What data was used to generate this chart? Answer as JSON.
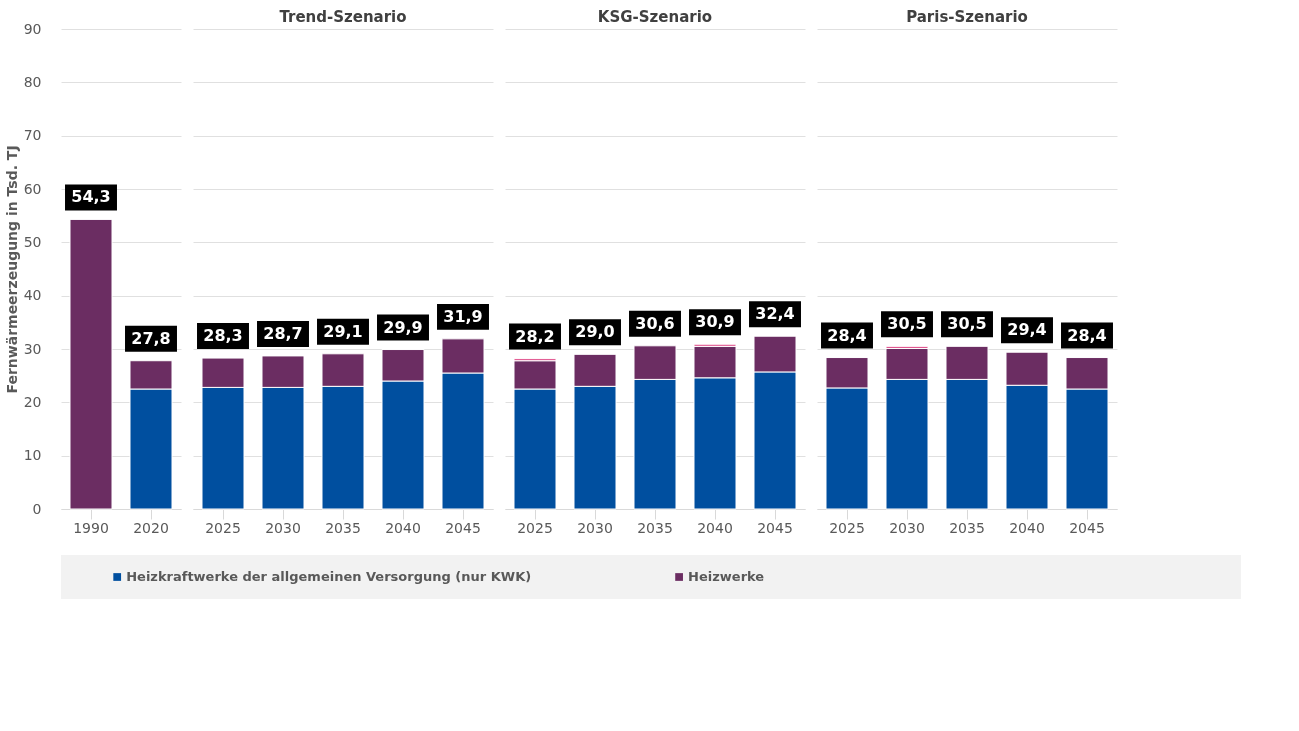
{
  "chart_data": [
    {
      "type": "bar",
      "stacked": true,
      "ylabel": "Fernwärmeerzeugung in Tsd. TJ",
      "categories": [
        "1990",
        "2020"
      ],
      "series": [
        {
          "name": "Heizkraftwerke der allgemeinen Versorgung (nur KWK)",
          "color": "#004f9f",
          "values": [
            null,
            22.5
          ]
        },
        {
          "name": "Heizwerke",
          "color": "#6b2d62",
          "values": [
            54.3,
            5.3
          ]
        }
      ],
      "totals": [
        "54,3",
        "27,8"
      ],
      "ylim": [
        0,
        90
      ],
      "yticks": [
        0,
        10,
        20,
        30,
        40,
        50,
        60,
        70,
        80,
        90
      ],
      "grid": "y",
      "legend": "bottom"
    },
    {
      "type": "bar",
      "stacked": true,
      "title": "Trend-Szenario",
      "categories": [
        "2025",
        "2030",
        "2035",
        "2040",
        "2045"
      ],
      "series": [
        {
          "color": "#004f9f",
          "values": [
            22.8,
            22.8,
            23.0,
            24.0,
            25.5
          ]
        },
        {
          "color": "#6b2d62",
          "values": [
            5.5,
            5.9,
            6.1,
            5.9,
            6.4
          ]
        }
      ],
      "totals": [
        "28,3",
        "28,7",
        "29,1",
        "29,9",
        "31,9"
      ],
      "ylim": [
        0,
        90
      ],
      "yticks": [
        0,
        10,
        20,
        30,
        40,
        50,
        60,
        70,
        80,
        90
      ],
      "grid": "y",
      "tick_labels": "x"
    },
    {
      "type": "bar",
      "stacked": true,
      "title": "KSG-Szenario",
      "categories": [
        "2025",
        "2030",
        "2035",
        "2040",
        "2045"
      ],
      "series": [
        {
          "color": "#004f9f",
          "values": [
            22.5,
            23.0,
            24.3,
            24.6,
            25.7
          ]
        },
        {
          "color": "#6b2d62",
          "values": [
            5.3,
            6.0,
            6.3,
            5.9,
            6.7
          ]
        },
        {
          "color": "#e0508c",
          "values": [
            0.4,
            null,
            null,
            0.4,
            null
          ]
        }
      ],
      "totals": [
        "28,2",
        "29,0",
        "30,6",
        "30,9",
        "32,4"
      ],
      "ylim": [
        0,
        90
      ],
      "yticks": [
        0,
        10,
        20,
        30,
        40,
        50,
        60,
        70,
        80,
        90
      ],
      "grid": "y",
      "tick_labels": "x"
    },
    {
      "type": "bar",
      "stacked": true,
      "title": "Paris-Szenario",
      "categories": [
        "2025",
        "2030",
        "2035",
        "2040",
        "2045"
      ],
      "series": [
        {
          "color": "#004f9f",
          "values": [
            22.7,
            24.3,
            24.3,
            23.2,
            22.5
          ]
        },
        {
          "color": "#6b2d62",
          "values": [
            5.7,
            5.8,
            6.2,
            6.2,
            5.9
          ]
        },
        {
          "color": "#e0508c",
          "values": [
            null,
            0.4,
            null,
            null,
            null
          ]
        }
      ],
      "totals": [
        "28,4",
        "30,5",
        "30,5",
        "29,4",
        "28,4"
      ],
      "ylim": [
        0,
        90
      ],
      "yticks": [
        0,
        10,
        20,
        30,
        40,
        50,
        60,
        70,
        80,
        90
      ],
      "grid": "y",
      "tick_labels": "x"
    }
  ]
}
